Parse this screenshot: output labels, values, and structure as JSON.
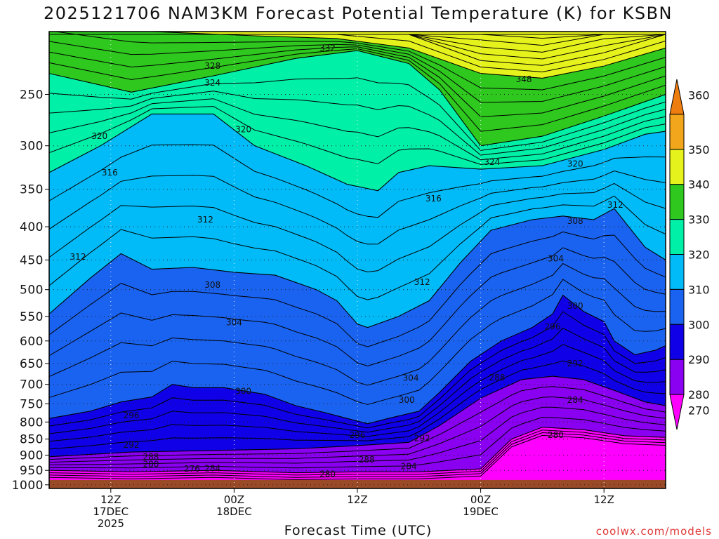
{
  "chart_data": {
    "type": "heatmap",
    "title": "2025121706 NAM3KM Forecast Potential Temperature (K) for KSBN",
    "xlabel": "Forecast Time (UTC)",
    "ylabel": "",
    "credit": "coolwx.com/models",
    "y_axis": {
      "scale": "log-pressure",
      "ticks": [
        250,
        300,
        350,
        400,
        450,
        500,
        550,
        600,
        650,
        700,
        750,
        800,
        850,
        900,
        950,
        1000
      ],
      "range": [
        1013,
        200
      ],
      "unit": "hPa"
    },
    "x_axis": {
      "range_hours": [
        0,
        60
      ],
      "ticks": [
        {
          "hour": 6,
          "lines": [
            "12Z",
            "17DEC",
            "2025"
          ]
        },
        {
          "hour": 18,
          "lines": [
            "00Z",
            "18DEC"
          ]
        },
        {
          "hour": 30,
          "lines": [
            "12Z"
          ]
        },
        {
          "hour": 42,
          "lines": [
            "00Z",
            "19DEC"
          ]
        },
        {
          "hour": 54,
          "lines": [
            "12Z"
          ]
        }
      ]
    },
    "grid": true,
    "colorbar": {
      "position": "right",
      "levels": [
        270,
        280,
        290,
        300,
        310,
        320,
        330,
        340,
        350,
        360
      ],
      "colors": [
        "#fe00fe",
        "#8a00f0",
        "#1000e8",
        "#1a63f0",
        "#00bbf8",
        "#00f0a8",
        "#2ec81e",
        "#e6f21c",
        "#f2a61c",
        "#ee7d10"
      ]
    },
    "contour_interval_K": 2,
    "contour_labels": [
      {
        "v": 332,
        "h": 27.1,
        "p": 212
      },
      {
        "v": 328,
        "h": 15.9,
        "p": 226
      },
      {
        "v": 324,
        "h": 15.9,
        "p": 240
      },
      {
        "v": 320,
        "h": 18.9,
        "p": 283
      },
      {
        "v": 320,
        "h": 4.9,
        "p": 290
      },
      {
        "v": 348,
        "h": 46.2,
        "p": 237
      },
      {
        "v": 324,
        "h": 43.1,
        "p": 318
      },
      {
        "v": 320,
        "h": 51.2,
        "p": 320
      },
      {
        "v": 316,
        "h": 5.9,
        "p": 330
      },
      {
        "v": 316,
        "h": 37.4,
        "p": 362
      },
      {
        "v": 312,
        "h": 55.1,
        "p": 370
      },
      {
        "v": 308,
        "h": 51.2,
        "p": 392
      },
      {
        "v": 312,
        "h": 15.2,
        "p": 390
      },
      {
        "v": 312,
        "h": 2.8,
        "p": 445
      },
      {
        "v": 304,
        "h": 49.3,
        "p": 448
      },
      {
        "v": 312,
        "h": 36.3,
        "p": 487
      },
      {
        "v": 308,
        "h": 15.9,
        "p": 492
      },
      {
        "v": 300,
        "h": 51.2,
        "p": 530
      },
      {
        "v": 296,
        "h": 49.0,
        "p": 570
      },
      {
        "v": 304,
        "h": 18.0,
        "p": 562
      },
      {
        "v": 292,
        "h": 51.2,
        "p": 650
      },
      {
        "v": 288,
        "h": 43.6,
        "p": 683
      },
      {
        "v": 304,
        "h": 35.2,
        "p": 684
      },
      {
        "v": 300,
        "h": 18.9,
        "p": 717
      },
      {
        "v": 284,
        "h": 51.2,
        "p": 740
      },
      {
        "v": 300,
        "h": 34.8,
        "p": 740
      },
      {
        "v": 296,
        "h": 8.0,
        "p": 782
      },
      {
        "v": 280,
        "h": 49.3,
        "p": 838
      },
      {
        "v": 296,
        "h": 30.0,
        "p": 838
      },
      {
        "v": 292,
        "h": 36.3,
        "p": 848
      },
      {
        "v": 292,
        "h": 8.0,
        "p": 868
      },
      {
        "v": 288,
        "h": 9.9,
        "p": 905
      },
      {
        "v": 288,
        "h": 30.9,
        "p": 915
      },
      {
        "v": 280,
        "h": 9.9,
        "p": 930
      },
      {
        "v": 284,
        "h": 35.0,
        "p": 937
      },
      {
        "v": 276,
        "h": 13.9,
        "p": 945
      },
      {
        "v": 284,
        "h": 15.9,
        "p": 943
      },
      {
        "v": 280,
        "h": 27.1,
        "p": 963
      }
    ],
    "boundaries": [
      {
        "v": 340,
        "profile": [
          [
            0,
            192
          ],
          [
            10,
            200
          ],
          [
            20,
            203
          ],
          [
            28,
            205
          ],
          [
            35,
            212
          ],
          [
            42,
            232
          ],
          [
            48,
            236
          ],
          [
            54,
            226
          ],
          [
            60,
            212
          ]
        ]
      },
      {
        "v": 330,
        "profile": [
          [
            0,
            232
          ],
          [
            8,
            248
          ],
          [
            16,
            234
          ],
          [
            24,
            220
          ],
          [
            30,
            214
          ],
          [
            35,
            224
          ],
          [
            38,
            246
          ],
          [
            42,
            300
          ],
          [
            48,
            290
          ],
          [
            54,
            270
          ],
          [
            60,
            250
          ]
        ]
      },
      {
        "v": 320,
        "profile": [
          [
            0,
            330
          ],
          [
            5,
            300
          ],
          [
            10,
            268
          ],
          [
            16,
            268
          ],
          [
            20,
            300
          ],
          [
            25,
            322
          ],
          [
            29,
            344
          ],
          [
            32,
            352
          ],
          [
            34,
            330
          ],
          [
            37,
            322
          ],
          [
            42,
            326
          ],
          [
            48,
            322
          ],
          [
            54,
            304
          ],
          [
            58,
            288
          ],
          [
            60,
            285
          ]
        ]
      },
      {
        "v": 310,
        "profile": [
          [
            0,
            545
          ],
          [
            4,
            480
          ],
          [
            7,
            440
          ],
          [
            10,
            465
          ],
          [
            14,
            462
          ],
          [
            18,
            470
          ],
          [
            22,
            475
          ],
          [
            26,
            500
          ],
          [
            28,
            520
          ],
          [
            30,
            565
          ],
          [
            31,
            572
          ],
          [
            34,
            550
          ],
          [
            37,
            520
          ],
          [
            40,
            455
          ],
          [
            43,
            405
          ],
          [
            47,
            390
          ],
          [
            50,
            385
          ],
          [
            53,
            390
          ],
          [
            55,
            375
          ],
          [
            58,
            430
          ],
          [
            60,
            450
          ]
        ]
      },
      {
        "v": 300,
        "profile": [
          [
            0,
            790
          ],
          [
            4,
            770
          ],
          [
            7,
            745
          ],
          [
            10,
            732
          ],
          [
            12,
            700
          ],
          [
            14,
            708
          ],
          [
            17,
            708
          ],
          [
            21,
            725
          ],
          [
            24,
            755
          ],
          [
            27,
            775
          ],
          [
            29,
            790
          ],
          [
            31,
            805
          ],
          [
            33,
            790
          ],
          [
            36,
            770
          ],
          [
            38,
            720
          ],
          [
            41,
            645
          ],
          [
            44,
            600
          ],
          [
            47,
            572
          ],
          [
            49,
            545
          ],
          [
            50,
            510
          ],
          [
            52,
            540
          ],
          [
            54,
            560
          ],
          [
            55,
            600
          ],
          [
            57,
            630
          ],
          [
            59,
            620
          ],
          [
            60,
            610
          ]
        ]
      },
      {
        "v": 290,
        "profile": [
          [
            0,
            905
          ],
          [
            8,
            890
          ],
          [
            16,
            885
          ],
          [
            24,
            880
          ],
          [
            30,
            870
          ],
          [
            35,
            860
          ],
          [
            38,
            810
          ],
          [
            42,
            735
          ],
          [
            46,
            688
          ],
          [
            49,
            680
          ],
          [
            52,
            688
          ],
          [
            55,
            715
          ],
          [
            58,
            745
          ],
          [
            60,
            755
          ]
        ]
      },
      {
        "v": 280,
        "profile": [
          [
            0,
            950
          ],
          [
            8,
            955
          ],
          [
            16,
            950
          ],
          [
            24,
            958
          ],
          [
            30,
            955
          ],
          [
            36,
            955
          ],
          [
            42,
            945
          ],
          [
            45,
            850
          ],
          [
            48,
            815
          ],
          [
            52,
            822
          ],
          [
            56,
            840
          ],
          [
            60,
            845
          ]
        ]
      }
    ],
    "ground_band_hpa": [
      983,
      1013
    ],
    "ground_color": "#9a4a26"
  }
}
